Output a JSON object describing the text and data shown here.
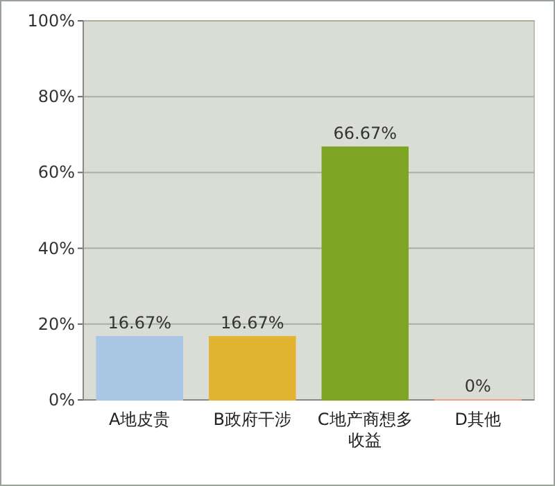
{
  "chart_data": {
    "type": "bar",
    "categories": [
      "A地皮贵",
      "B政府干涉",
      "C地产商想多收益",
      "D其他"
    ],
    "values": [
      16.67,
      16.67,
      66.67,
      0
    ],
    "colors": [
      "#a9c6e4",
      "#e2b431",
      "#7ea523",
      "#f2a283"
    ],
    "value_labels": [
      "16.67%",
      "16.67%",
      "66.67%",
      "0%"
    ],
    "ylim": [
      0,
      100
    ],
    "yticks": [
      {
        "value": 0,
        "label": "0%"
      },
      {
        "value": 20,
        "label": "20%"
      },
      {
        "value": 40,
        "label": "40%"
      },
      {
        "value": 60,
        "label": "60%"
      },
      {
        "value": 80,
        "label": "80%"
      },
      {
        "value": 100,
        "label": "100%"
      }
    ],
    "grid": "y"
  }
}
